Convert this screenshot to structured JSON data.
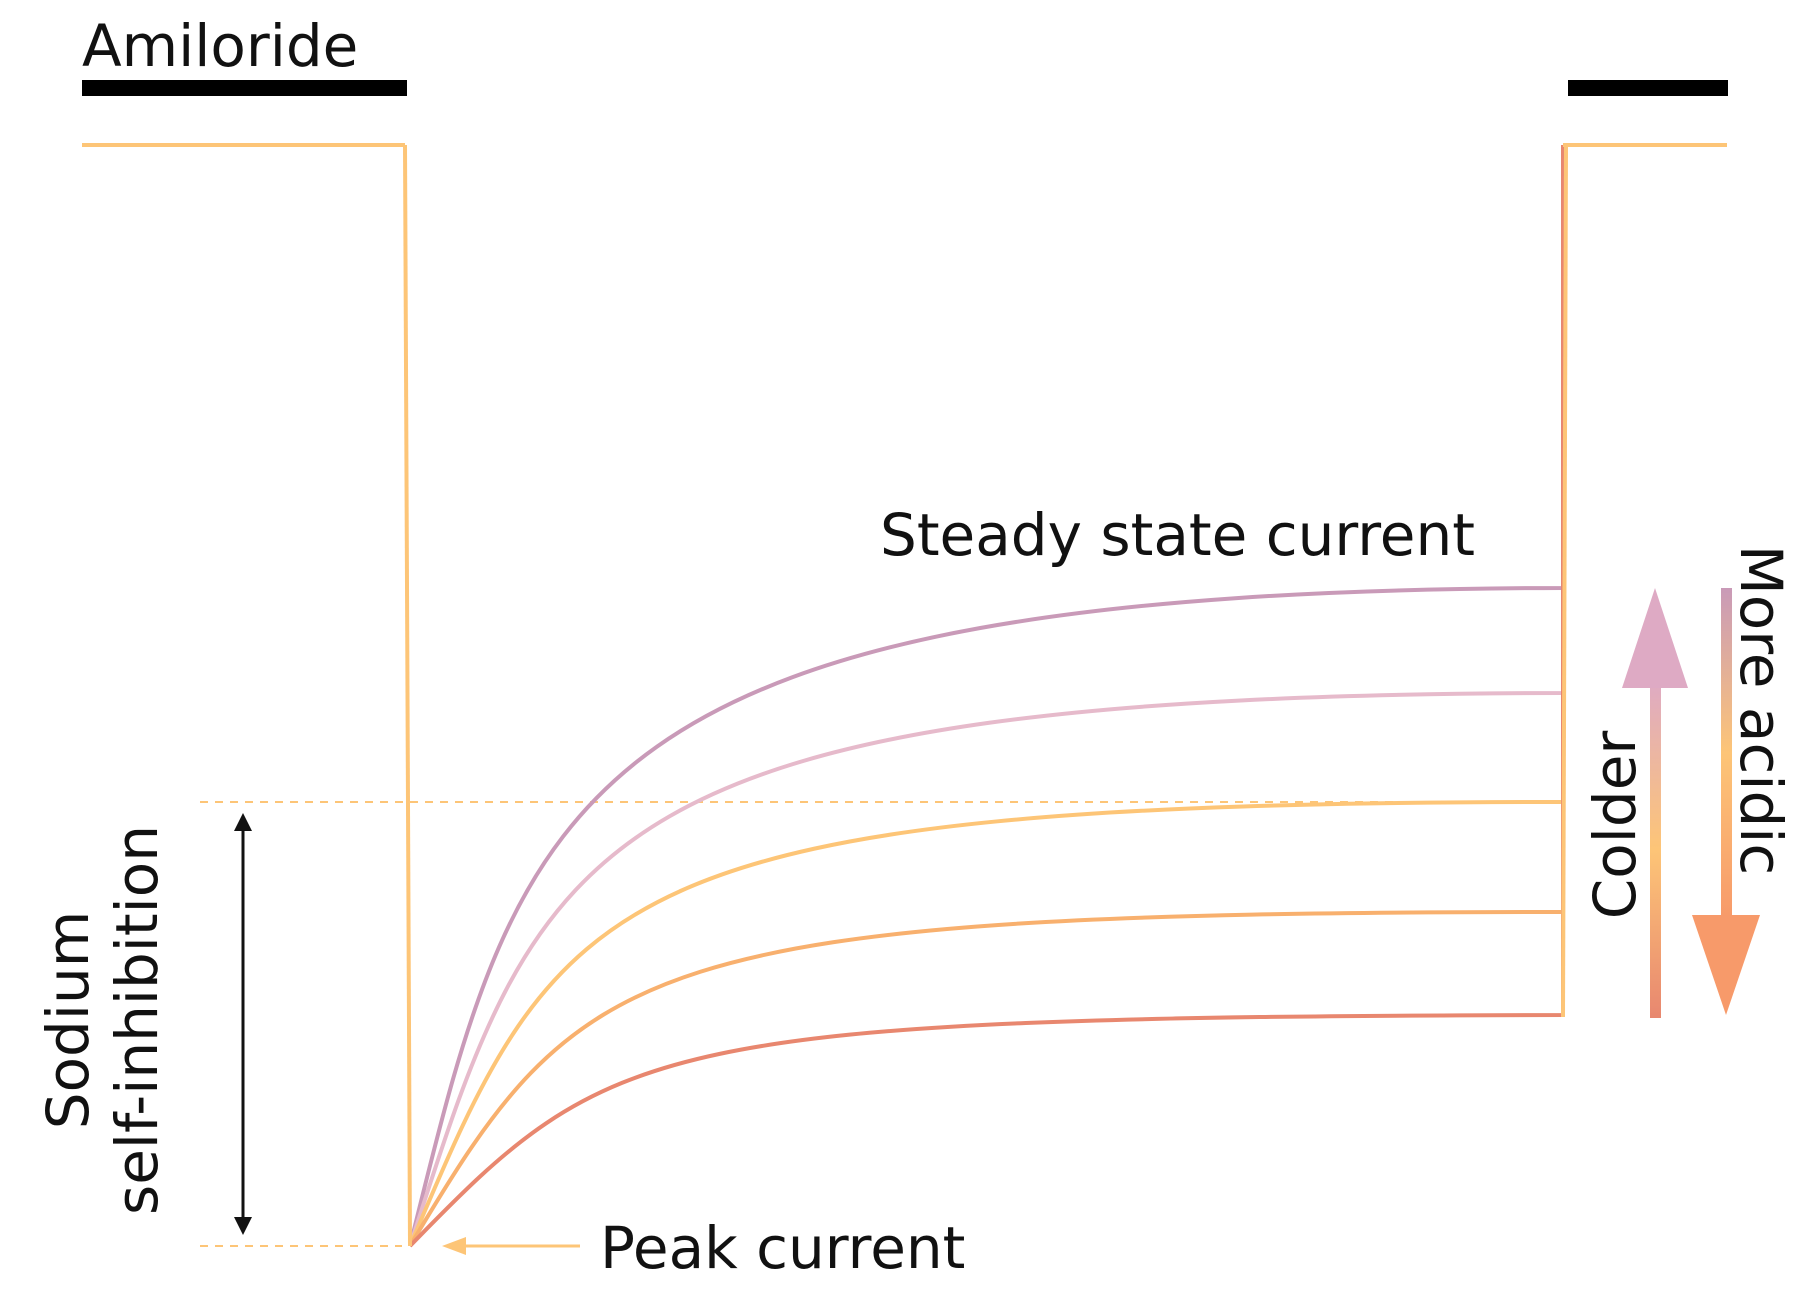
{
  "labels": {
    "amiloride": "Amiloride",
    "steady_state": "Steady state current",
    "peak": "Peak current",
    "sodium_line1": "Sodium",
    "sodium_line2": "self-inhibition",
    "colder": "Colder",
    "more_acidic": "More acidic"
  },
  "traces": [
    {
      "name": "trace-1",
      "color": "#c99ab8"
    },
    {
      "name": "trace-2",
      "color": "#e6bacb"
    },
    {
      "name": "trace-3",
      "color": "#fdc577"
    },
    {
      "name": "trace-4",
      "color": "#f8b06e"
    },
    {
      "name": "trace-5",
      "color": "#e8876f"
    }
  ],
  "colors": {
    "baseline": "#fdc577",
    "bar": "#000000",
    "guide": "#fdc577",
    "arrow_top": "#deaac4",
    "arrow_mid": "#fdc577",
    "arrow_bottom": "#e8876f",
    "text": "#111111"
  }
}
